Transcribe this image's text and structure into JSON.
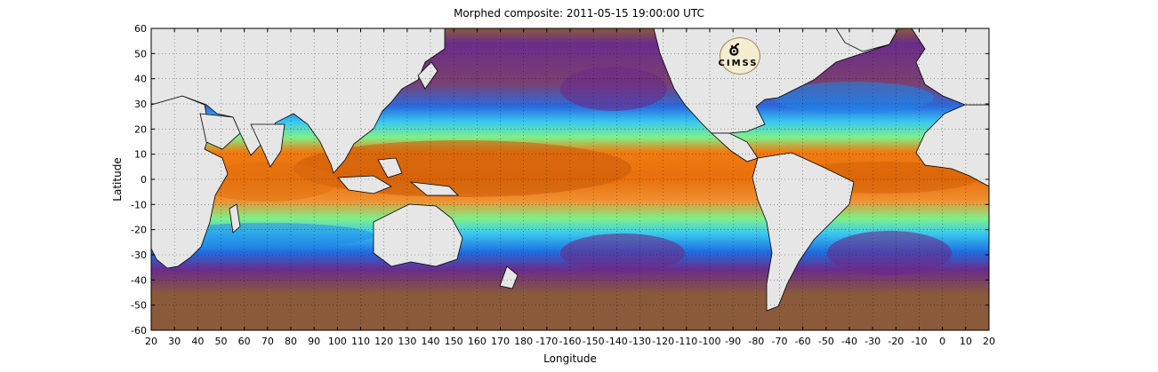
{
  "title": "Morphed composite: 2011-05-15 19:00:00 UTC",
  "xlabel": "Longitude",
  "ylabel": "Latitude",
  "x_ticks": [
    "20",
    "30",
    "40",
    "50",
    "60",
    "70",
    "80",
    "90",
    "100",
    "110",
    "120",
    "130",
    "140",
    "150",
    "160",
    "170",
    "180",
    "-170",
    "-160",
    "-150",
    "-140",
    "-130",
    "-120",
    "-110",
    "-100",
    "-90",
    "-80",
    "-70",
    "-60",
    "-50",
    "-40",
    "-30",
    "-20",
    "-10",
    "0",
    "10",
    "20"
  ],
  "y_ticks": [
    "60",
    "50",
    "40",
    "30",
    "20",
    "10",
    "0",
    "-10",
    "-20",
    "-30",
    "-40",
    "-50",
    "-60"
  ],
  "logo_text": "CIMSS",
  "colors": {
    "land": "#e6e6e6",
    "ocean_dry": "#8a5a3a",
    "dry_purple": "#6a2c8a",
    "moist_blue": "#1f86e8",
    "moist_cyan": "#38c8f0",
    "moist_green": "#7ef08a",
    "wet_orange": "#f07a10",
    "wet_dark": "#b24808"
  }
}
